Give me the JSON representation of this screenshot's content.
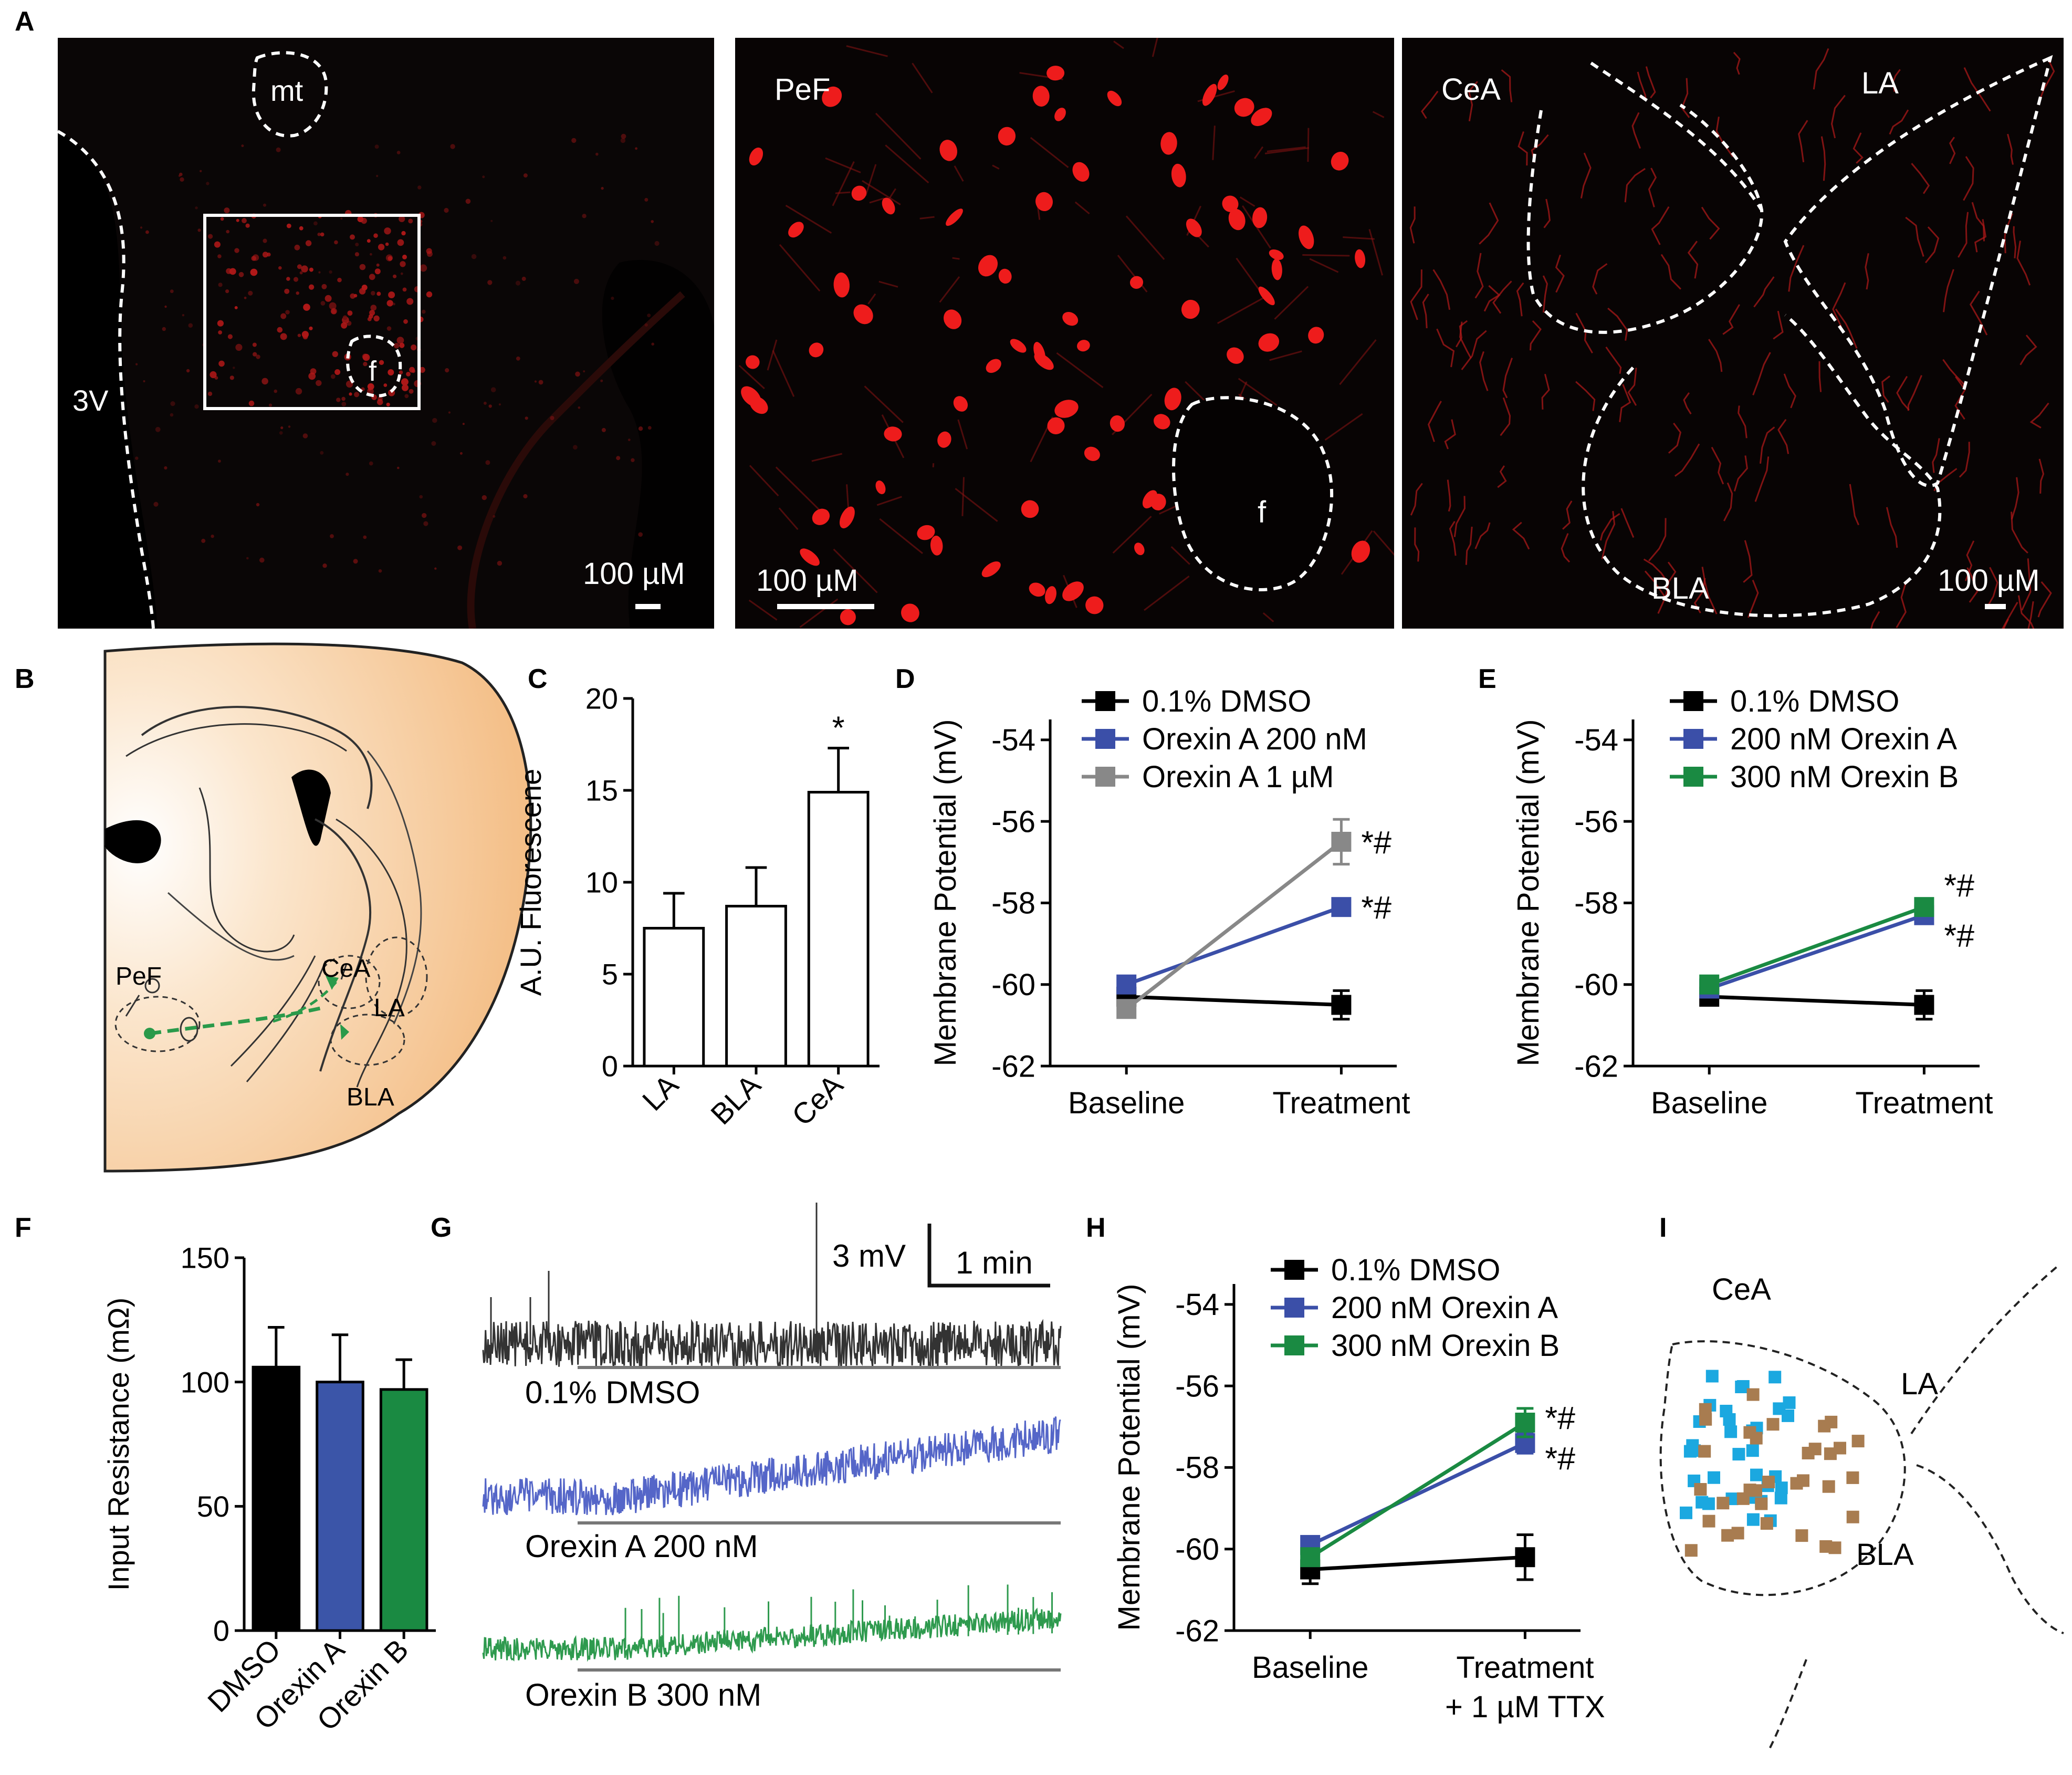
{
  "panel_labels": {
    "A": "A",
    "B": "B",
    "C": "C",
    "D": "D",
    "E": "E",
    "F": "F",
    "G": "G",
    "H": "H",
    "I": "I"
  },
  "panel_a": {
    "left": {
      "mt": "mt",
      "f": "f",
      "v3": "3V",
      "scale": "100 µM"
    },
    "middle": {
      "region": "PeF",
      "f": "f",
      "scale": "100 µM"
    },
    "right": {
      "cea": "CeA",
      "la": "LA",
      "bla": "BLA",
      "scale": "100 µM"
    }
  },
  "panel_b": {
    "pef": "PeF",
    "cea": "CeA",
    "la": "LA",
    "bla": "BLA"
  },
  "panel_g": {
    "scale_mv": "3 mV",
    "scale_time": "1 min",
    "traces": [
      {
        "label": "0.1% DMSO",
        "color": "#333333"
      },
      {
        "label": "Orexin A 200 nM",
        "color": "#5566c8"
      },
      {
        "label": "Orexin B 300 nM",
        "color": "#2e9a4e"
      }
    ]
  },
  "panel_i": {
    "cea": "CeA",
    "la": "LA",
    "bla": "BLA",
    "blue": "#1ba8e0",
    "brown": "#a87c50"
  },
  "chart_data": [
    {
      "id": "C",
      "type": "bar",
      "ylabel": "A.U. Fluorescene",
      "ylim": [
        0,
        20
      ],
      "yticks": [
        0,
        5,
        10,
        15,
        20
      ],
      "categories": [
        "LA",
        "BLA",
        "CeA"
      ],
      "values": [
        7.5,
        8.7,
        14.9
      ],
      "errors": [
        1.9,
        2.1,
        2.4
      ],
      "colors": [
        "#ffffff",
        "#ffffff",
        "#ffffff"
      ],
      "annotations": [
        "",
        "",
        "*"
      ]
    },
    {
      "id": "D",
      "type": "line",
      "ylabel": "Membrane Potential (mV)",
      "ylim": [
        -62,
        -53.5
      ],
      "yticks": [
        -62,
        -60,
        -58,
        -56,
        -54
      ],
      "x": [
        "Baseline",
        "Treatment"
      ],
      "series": [
        {
          "name": "0.1% DMSO",
          "color": "#000000",
          "values": [
            -60.3,
            -60.5
          ],
          "errors": [
            0.15,
            0.35
          ],
          "annot": ""
        },
        {
          "name": "Orexin A 200 nM",
          "color": "#3b4fa8",
          "values": [
            -60.0,
            -58.1
          ],
          "errors": [
            0.12,
            0.12
          ],
          "annot": "*#"
        },
        {
          "name": "Orexin A 1 µM",
          "color": "#888888",
          "values": [
            -60.6,
            -56.5
          ],
          "errors": [
            0.15,
            0.55
          ],
          "annot": "*#"
        }
      ]
    },
    {
      "id": "E",
      "type": "line",
      "ylabel": "Membrane Potential (mV)",
      "ylim": [
        -62,
        -53.5
      ],
      "yticks": [
        -62,
        -60,
        -58,
        -56,
        -54
      ],
      "x": [
        "Baseline",
        "Treatment"
      ],
      "series": [
        {
          "name": "0.1% DMSO",
          "color": "#000000",
          "values": [
            -60.3,
            -60.5
          ],
          "errors": [
            0.15,
            0.35
          ],
          "annot": ""
        },
        {
          "name": "200 nM Orexin A",
          "color": "#3b4fa8",
          "values": [
            -60.1,
            -58.3
          ],
          "errors": [
            0.12,
            0.15
          ],
          "annot": "*#"
        },
        {
          "name": "300 nM Orexin B",
          "color": "#1a8a42",
          "values": [
            -60.0,
            -58.1
          ],
          "errors": [
            0.12,
            0.15
          ],
          "annot": "*#"
        }
      ]
    },
    {
      "id": "F",
      "type": "bar",
      "ylabel": "Input Resistance (mΩ)",
      "ylim": [
        0,
        150
      ],
      "yticks": [
        0,
        50,
        100,
        150
      ],
      "categories": [
        "DMSO",
        "Orexin A",
        "Orexin B"
      ],
      "values": [
        106,
        100,
        97
      ],
      "errors": [
        16,
        19,
        12
      ],
      "colors": [
        "#000000",
        "#3b55a8",
        "#1a8a42"
      ],
      "annotations": [
        "",
        "",
        ""
      ]
    },
    {
      "id": "H",
      "type": "line",
      "ylabel": "Membrane Potential (mV)",
      "ylim": [
        -62,
        -53.5
      ],
      "yticks": [
        -62,
        -60,
        -58,
        -56,
        -54
      ],
      "x": [
        "Baseline",
        "Treatment"
      ],
      "x2": [
        "",
        "+ 1 µM TTX"
      ],
      "series": [
        {
          "name": "0.1% DMSO",
          "color": "#000000",
          "values": [
            -60.5,
            -60.2
          ],
          "errors": [
            0.35,
            0.55
          ],
          "annot": ""
        },
        {
          "name": "200 nM Orexin A",
          "color": "#3b4fa8",
          "values": [
            -59.9,
            -57.4
          ],
          "errors": [
            0.15,
            0.25
          ],
          "annot": "*#"
        },
        {
          "name": "300 nM Orexin B",
          "color": "#1a8a42",
          "values": [
            -60.2,
            -56.9
          ],
          "errors": [
            0.15,
            0.35
          ],
          "annot": "*#"
        }
      ]
    }
  ]
}
